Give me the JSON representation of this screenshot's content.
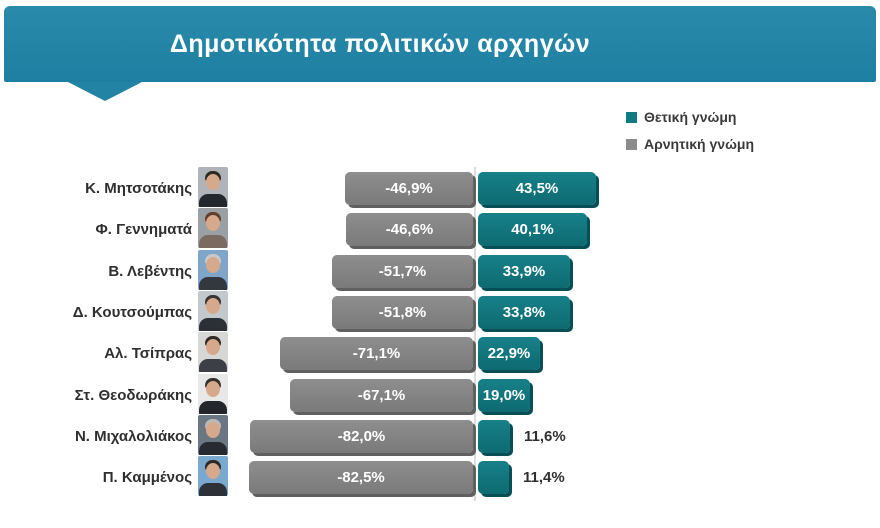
{
  "title": "Δημοτικότητα πολιτικών αρχηγών",
  "legend": {
    "positive_label": "Θετική γνώμη",
    "negative_label": "Αρνητική γνώμη"
  },
  "colors": {
    "banner": "#2383a5",
    "positive_bar": "#117a82",
    "positive_bar_shadow": "#084f55",
    "negative_bar": "#828282",
    "negative_bar_shadow": "#606060",
    "axis_line": "#dcdcdc",
    "label_text": "#2f2f2f",
    "title_text": "#ffffff"
  },
  "chart_data": {
    "type": "bar",
    "orientation": "horizontal",
    "diverging": true,
    "title": "Δημοτικότητα πολιτικών αρχηγών",
    "categories": [
      "Κ. Μητσοτάκης",
      "Φ. Γεννηματά",
      "Β. Λεβέντης",
      "Δ. Κουτσούμπας",
      "Αλ. Τσίπρας",
      "Στ. Θεοδωράκης",
      "Ν. Μιχαλολιάκος",
      "Π. Καμμένος"
    ],
    "series": [
      {
        "name": "Θετική γνώμη",
        "color": "#117a82",
        "values": [
          43.5,
          40.1,
          33.9,
          33.8,
          22.9,
          19.0,
          11.6,
          11.4
        ]
      },
      {
        "name": "Αρνητική γνώμη",
        "color": "#828282",
        "values": [
          -46.9,
          -46.6,
          -51.7,
          -51.8,
          -71.1,
          -67.1,
          -82.0,
          -82.5
        ]
      }
    ],
    "value_format": "percent with comma decimal, e.g. -46,9% / 43,5%",
    "xlim": [
      -100,
      100
    ],
    "grid": false,
    "legend_position": "top-right"
  },
  "rows": [
    {
      "name": "Κ. Μητσοτάκης",
      "negative": 46.9,
      "positive": 43.5,
      "negative_label": "-46,9%",
      "positive_label": "43,5%",
      "photo": {
        "bg": "#b0b4b8",
        "hair": "#2e2a26",
        "suit": "#23272e"
      }
    },
    {
      "name": "Φ. Γεννηματά",
      "negative": 46.6,
      "positive": 40.1,
      "negative_label": "-46,6%",
      "positive_label": "40,1%",
      "photo": {
        "bg": "#9aa0a4",
        "hair": "#5f3f2e",
        "suit": "#7a6a5f"
      }
    },
    {
      "name": "Β. Λεβέντης",
      "negative": 51.7,
      "positive": 33.9,
      "negative_label": "-51,7%",
      "positive_label": "33,9%",
      "photo": {
        "bg": "#7fa6c9",
        "hair": "#c9c9c9",
        "suit": "#33383f"
      }
    },
    {
      "name": "Δ. Κουτσούμπας",
      "negative": 51.8,
      "positive": 33.8,
      "negative_label": "-51,8%",
      "positive_label": "33,8%",
      "photo": {
        "bg": "#c3c8cc",
        "hair": "#3a3530",
        "suit": "#2b2f36"
      }
    },
    {
      "name": "Αλ. Τσίπρας",
      "negative": 71.1,
      "positive": 22.9,
      "negative_label": "-71,1%",
      "positive_label": "22,9%",
      "photo": {
        "bg": "#d7d7d5",
        "hair": "#2f2b28",
        "suit": "#3c4046"
      }
    },
    {
      "name": "Στ. Θεοδωράκης",
      "negative": 67.1,
      "positive": 19.0,
      "negative_label": "-67,1%",
      "positive_label": "19,0%",
      "photo": {
        "bg": "#e8e8e8",
        "hair": "#35302b",
        "suit": "#23262b"
      }
    },
    {
      "name": "Ν. Μιχαλολιάκος",
      "negative": 82.0,
      "positive": 11.6,
      "negative_label": "-82,0%",
      "positive_label": "11,6%",
      "photo": {
        "bg": "#6b7683",
        "hair": "#b9b9b9",
        "suit": "#272b31"
      }
    },
    {
      "name": "Π. Καμμένος",
      "negative": 82.5,
      "positive": 11.4,
      "negative_label": "-82,5%",
      "positive_label": "11,4%",
      "photo": {
        "bg": "#7aa9cf",
        "hair": "#2c2824",
        "suit": "#2e3238"
      }
    }
  ]
}
